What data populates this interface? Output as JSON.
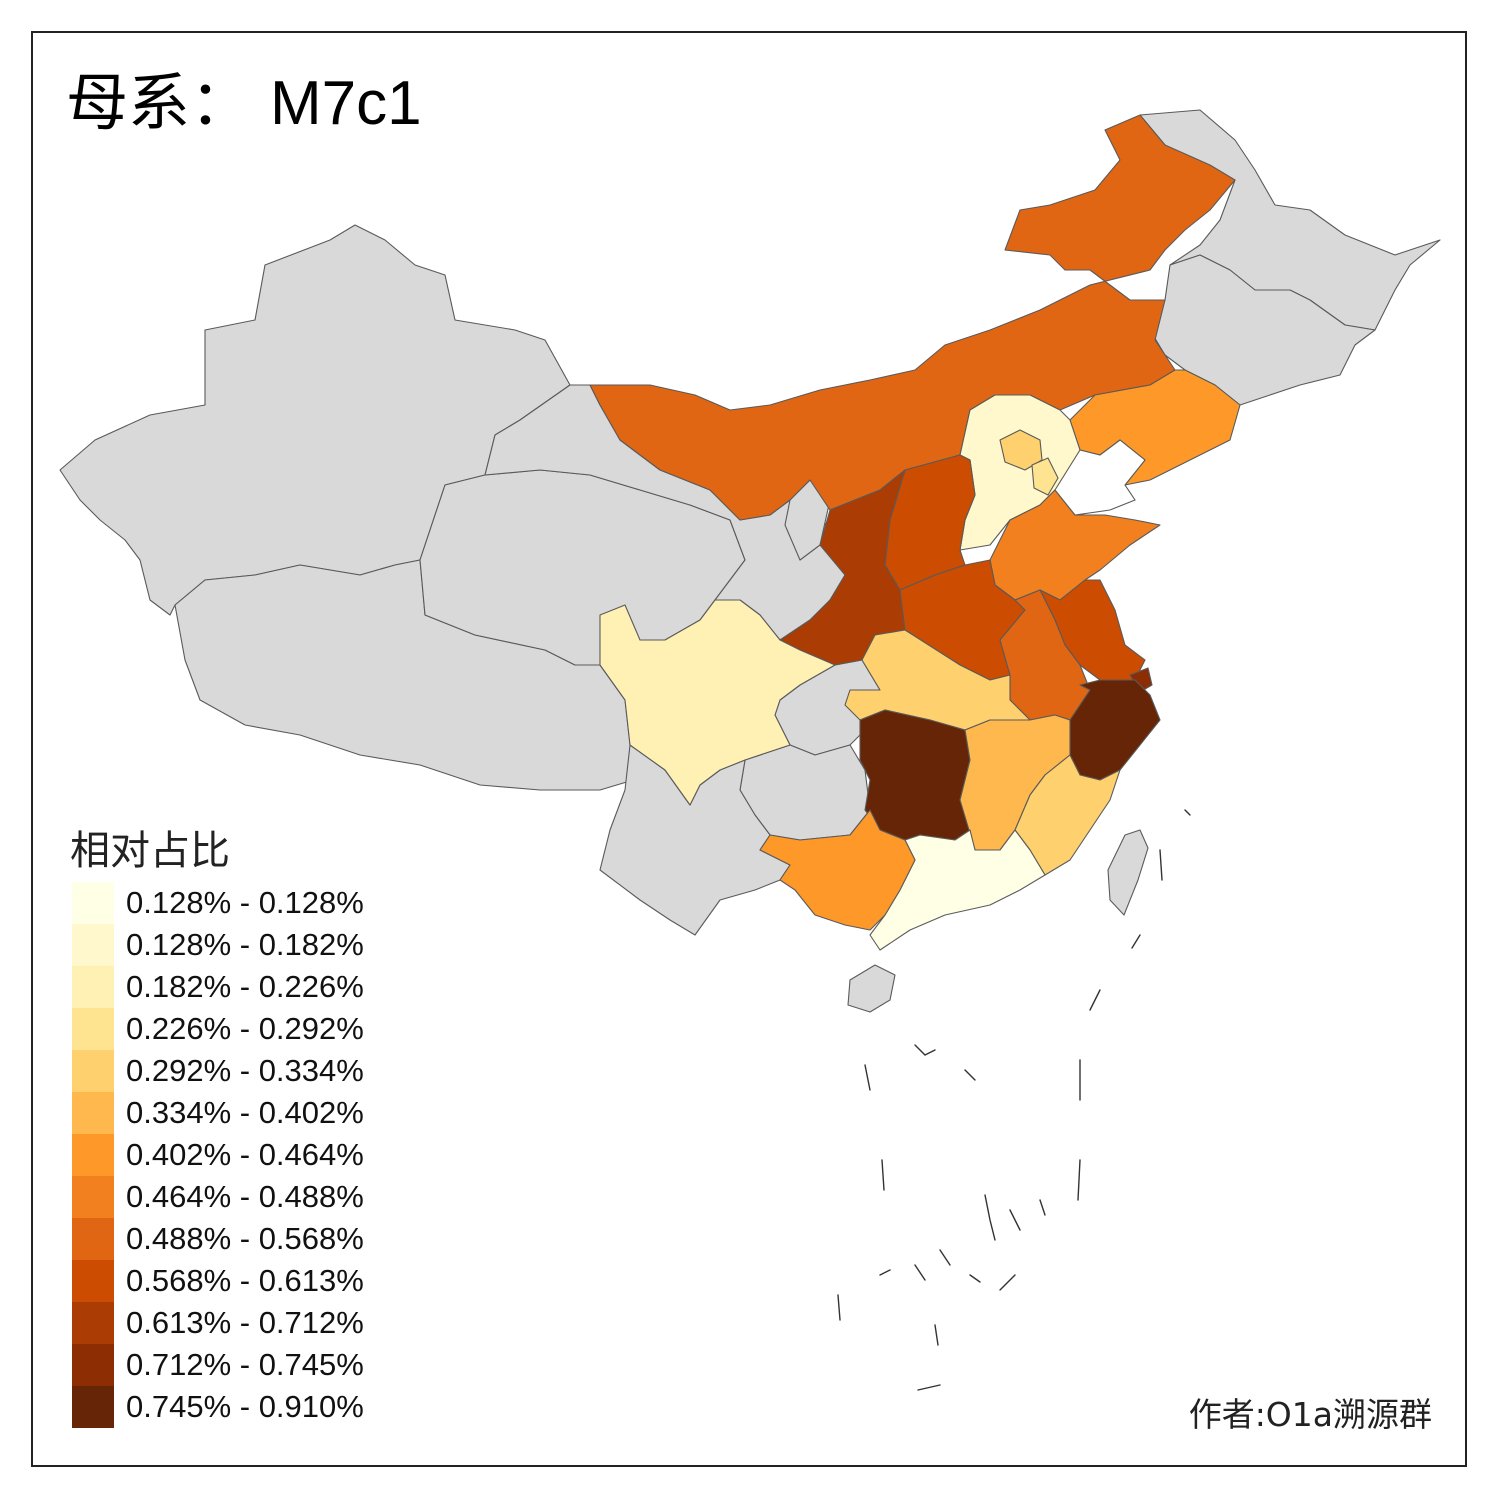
{
  "title": {
    "prefix": "母系：",
    "code": "M7c1"
  },
  "legend": {
    "title": "相对占比",
    "bins": [
      {
        "label": "0.128% - 0.128%",
        "color": "#ffffe5"
      },
      {
        "label": "0.128% - 0.182%",
        "color": "#fff8cc"
      },
      {
        "label": "0.182% - 0.226%",
        "color": "#fff0b4"
      },
      {
        "label": "0.226% - 0.292%",
        "color": "#fee391"
      },
      {
        "label": "0.292% - 0.334%",
        "color": "#fed06e"
      },
      {
        "label": "0.334% - 0.402%",
        "color": "#feb84e"
      },
      {
        "label": "0.402% - 0.464%",
        "color": "#fe9929"
      },
      {
        "label": "0.464% - 0.488%",
        "color": "#f3801f"
      },
      {
        "label": "0.488% - 0.568%",
        "color": "#e16613"
      },
      {
        "label": "0.568% - 0.613%",
        "color": "#cc4c02"
      },
      {
        "label": "0.613% - 0.712%",
        "color": "#ab3c04"
      },
      {
        "label": "0.712% - 0.745%",
        "color": "#8c2d04"
      },
      {
        "label": "0.745% - 0.910%",
        "color": "#662506"
      }
    ]
  },
  "no_data_color": "#d9d9d9",
  "regions": {
    "xinjiang": {
      "bin": null
    },
    "xizang": {
      "bin": null
    },
    "qinghai": {
      "bin": null
    },
    "gansu": {
      "bin": null
    },
    "ningxia": {
      "bin": null
    },
    "chongqing": {
      "bin": null
    },
    "guizhou": {
      "bin": null
    },
    "yunnan": {
      "bin": null
    },
    "heilongjiang": {
      "bin": null
    },
    "jilin": {
      "bin": null
    },
    "hainan": {
      "bin": null
    },
    "taiwan": {
      "bin": null
    },
    "neimenggu": {
      "bin": 8
    },
    "liaoning": {
      "bin": 6
    },
    "hebei": {
      "bin": 1
    },
    "beijing": {
      "bin": 4
    },
    "tianjin": {
      "bin": 3
    },
    "shanxi": {
      "bin": 9
    },
    "shaanxi": {
      "bin": 10
    },
    "shandong": {
      "bin": 7
    },
    "henan": {
      "bin": 9
    },
    "jiangsu": {
      "bin": 9
    },
    "anhui": {
      "bin": 8
    },
    "shanghai": {
      "bin": 11
    },
    "zhejiang": {
      "bin": 12
    },
    "hubei": {
      "bin": 4
    },
    "sichuan": {
      "bin": 2
    },
    "hunan": {
      "bin": 12
    },
    "jiangxi": {
      "bin": 5
    },
    "fujian": {
      "bin": 4
    },
    "guangdong": {
      "bin": 0
    },
    "guangxi": {
      "bin": 6
    }
  },
  "author": "作者:O1a溯源群"
}
